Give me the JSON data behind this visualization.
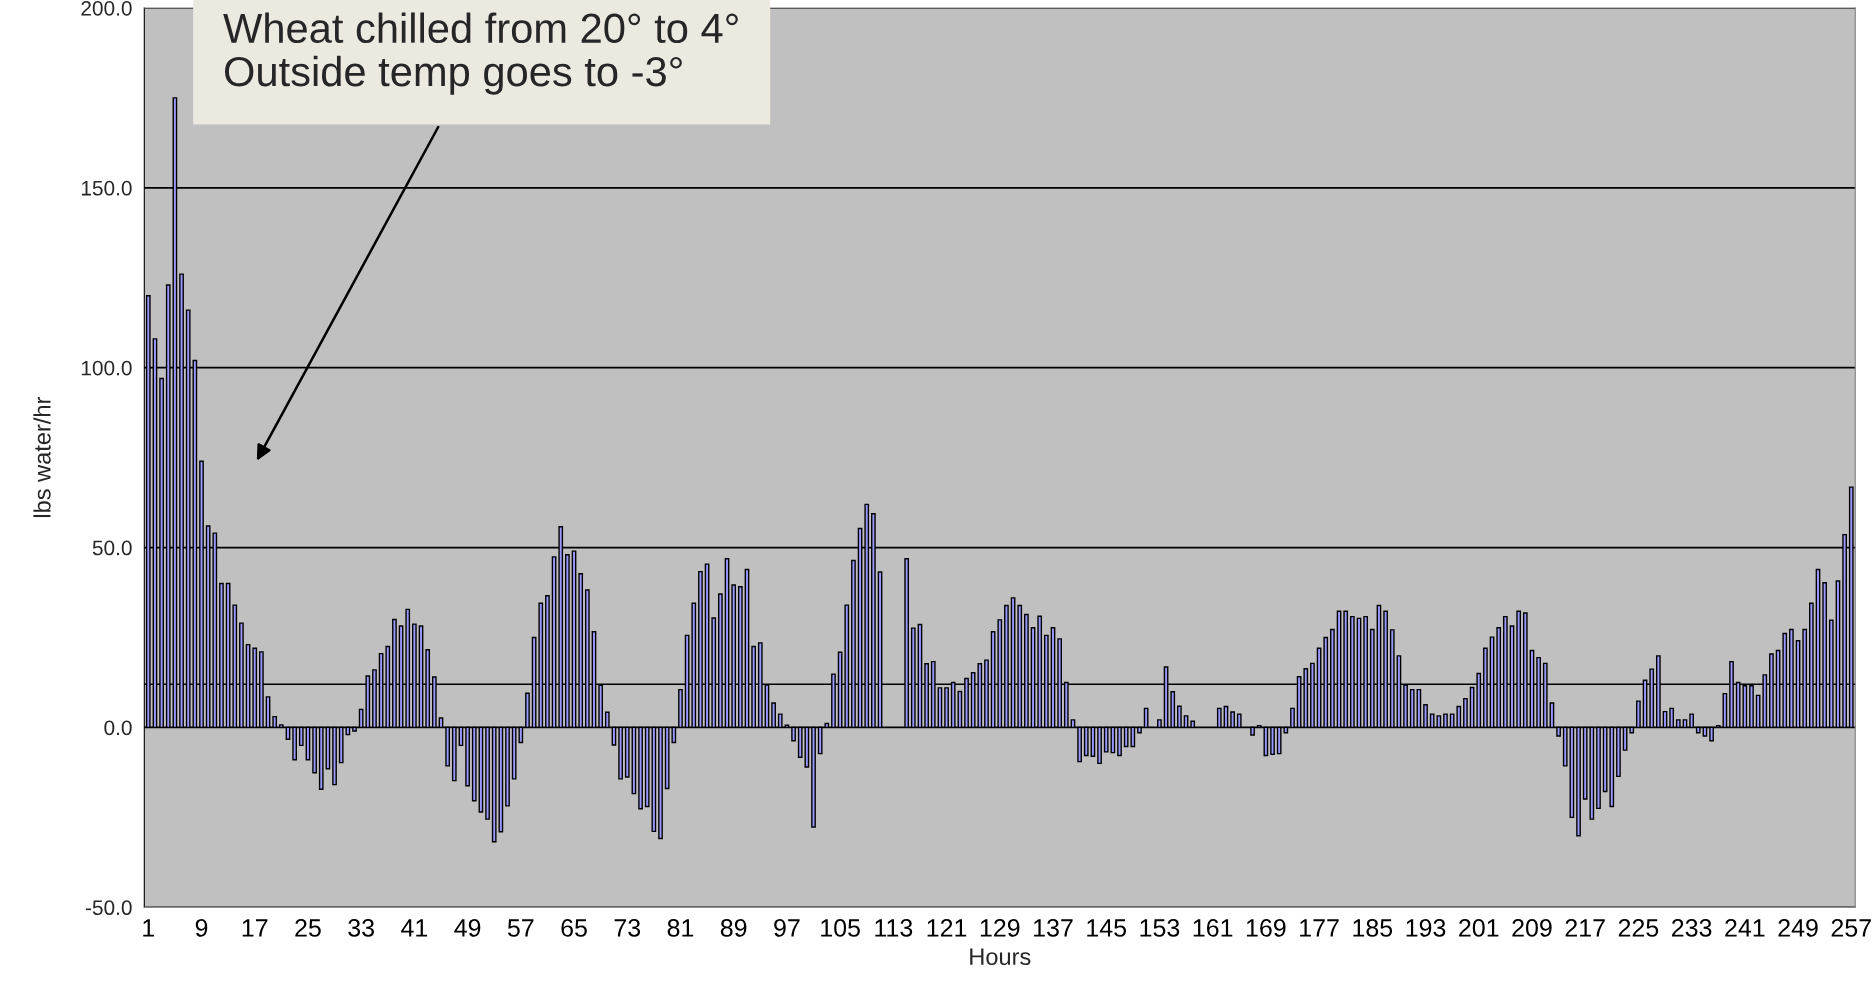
{
  "chart_data": {
    "type": "bar",
    "xlabel": "Hours",
    "ylabel": "lbs water/hr",
    "categories": [
      "1",
      null,
      null,
      null,
      null,
      null,
      null,
      null,
      "9",
      null,
      null,
      null,
      null,
      null,
      null,
      null,
      "17",
      null,
      null,
      null,
      null,
      null,
      null,
      null,
      "25",
      null,
      null,
      null,
      null,
      null,
      null,
      null,
      "33",
      null,
      null,
      null,
      null,
      null,
      null,
      null,
      "41",
      null,
      null,
      null,
      null,
      null,
      null,
      null,
      "49",
      null,
      null,
      null,
      null,
      null,
      null,
      null,
      "57",
      null,
      null,
      null,
      null,
      null,
      null,
      null,
      "65",
      null,
      null,
      null,
      null,
      null,
      null,
      null,
      "73",
      null,
      null,
      null,
      null,
      null,
      null,
      null,
      "81",
      null,
      null,
      null,
      null,
      null,
      null,
      null,
      "89",
      null,
      null,
      null,
      null,
      null,
      null,
      null,
      "97",
      null,
      null,
      null,
      null,
      null,
      null,
      null,
      "105",
      null,
      null,
      null,
      null,
      null,
      null,
      null,
      "113",
      null,
      null,
      null,
      null,
      null,
      null,
      null,
      "121",
      null,
      null,
      null,
      null,
      null,
      null,
      null,
      "129",
      null,
      null,
      null,
      null,
      null,
      null,
      null,
      "137",
      null,
      null,
      null,
      null,
      null,
      null,
      null,
      "145",
      null,
      null,
      null,
      null,
      null,
      null,
      null,
      "153",
      null,
      null,
      null,
      null,
      null,
      null,
      null,
      "161",
      null,
      null,
      null,
      null,
      null,
      null,
      null,
      "169",
      null,
      null,
      null,
      null,
      null,
      null,
      null,
      "177",
      null,
      null,
      null,
      null,
      null,
      null,
      null,
      "185",
      null,
      null,
      null,
      null,
      null,
      null,
      null,
      "193",
      null,
      null,
      null,
      null,
      null,
      null,
      null,
      "201",
      null,
      null,
      null,
      null,
      null,
      null,
      null,
      "209",
      null,
      null,
      null,
      null,
      null,
      null,
      null,
      "217",
      null,
      null,
      null,
      null,
      null,
      null,
      null,
      "225",
      null,
      null,
      null,
      null,
      null,
      null,
      null,
      "233",
      null,
      null,
      null,
      null,
      null,
      null,
      null,
      "241",
      null,
      null,
      null,
      null,
      null,
      null,
      null,
      "249",
      null,
      null,
      null,
      null,
      null,
      null,
      null,
      "257"
    ],
    "values": [
      120,
      108,
      97,
      123,
      175,
      126,
      116,
      102,
      74,
      56,
      54,
      40,
      40,
      34,
      29,
      23,
      22,
      21,
      8.5,
      3,
      0.7,
      -3.3,
      -9,
      -5,
      -9,
      -12.6,
      -17.2,
      -11.5,
      -15.9,
      -9.8,
      -2,
      -1,
      5,
      14.3,
      16,
      20.5,
      22.5,
      30,
      28.2,
      32.8,
      28.7,
      28.2,
      21.6,
      14,
      2.6,
      -10.7,
      -14.8,
      -5,
      -16.2,
      -20.4,
      -23.5,
      -25.5,
      -31.8,
      -29,
      -21.8,
      -14.3,
      -4.2,
      9.5,
      25,
      34.5,
      36.6,
      47.4,
      55.8,
      48,
      49,
      42.7,
      38.2,
      26.6,
      11.7,
      4.2,
      -4.9,
      -14.3,
      -13.8,
      -18.4,
      -22.6,
      -22,
      -28.9,
      -30.9,
      -17,
      -4.2,
      10.5,
      25.6,
      34.5,
      43.3,
      45.4,
      30.4,
      37.1,
      46.9,
      39.6,
      39.1,
      43.9,
      22.5,
      23.5,
      11.8,
      6.8,
      3.7,
      0.6,
      -3.7,
      -8.3,
      -11,
      -27.7,
      -7.3,
      1.1,
      14.8,
      20.9,
      34,
      46.4,
      55.3,
      62,
      59.4,
      43.2,
      null,
      null,
      null,
      46.9,
      27.6,
      28.6,
      17.7,
      18.3,
      11,
      11,
      12.5,
      10,
      13.6,
      15.2,
      17.7,
      18.7,
      26.6,
      29.9,
      33.9,
      36,
      33.9,
      31.4,
      27.7,
      30.9,
      25.6,
      27.7,
      24.6,
      12.5,
      2.1,
      -9.5,
      -7.8,
      -8,
      -10,
      -6.8,
      -7,
      -7.8,
      -5.3,
      -5.3,
      -1.5,
      5.3,
      null,
      2.1,
      16.8,
      9.9,
      5.9,
      3.2,
      1.7,
      null,
      null,
      null,
      5.3,
      5.8,
      4.3,
      3.7,
      null,
      -2.1,
      0.5,
      -7.8,
      -7.5,
      -7.3,
      -1.5,
      5.3,
      14.1,
      16.3,
      17.8,
      22,
      25,
      27.2,
      32.3,
      32.3,
      30.8,
      30.3,
      30.8,
      27.2,
      33.9,
      32.3,
      27.1,
      19.9,
      11.8,
      10.5,
      10.5,
      6.3,
      3.7,
      3.2,
      3.7,
      3.7,
      5.8,
      8,
      11.1,
      15,
      22,
      25.1,
      27.7,
      30.8,
      28.2,
      32.3,
      31.8,
      21.4,
      19.4,
      17.8,
      6.8,
      -2.4,
      -10.7,
      -25,
      -30.1,
      -19.9,
      -25.5,
      -22.5,
      -17.8,
      -22,
      -13.6,
      -6.3,
      -1.5,
      7.3,
      13.1,
      16.2,
      19.9,
      4.4,
      5.3,
      2.1,
      2.1,
      3.7,
      -1.5,
      -2.4,
      -3.7,
      0.5,
      9.4,
      18.3,
      12.5,
      11.6,
      11.6,
      8.9,
      14.6,
      20.4,
      21.4,
      26.1,
      27.2,
      24.1,
      27.2,
      34.5,
      43.9,
      40.2,
      29.8,
      40.7,
      53.6,
      66.8
    ],
    "color": "#9999ff",
    "ylim": [
      -50,
      200
    ],
    "yticks": [
      {
        "value": -50,
        "label": "-50.0"
      },
      {
        "value": 0,
        "label": "0.0"
      },
      {
        "value": 50,
        "label": "50.0"
      },
      {
        "value": 100,
        "label": "100.0"
      },
      {
        "value": 150,
        "label": "150.0"
      },
      {
        "value": 200,
        "label": "200.0"
      }
    ],
    "grid": "y",
    "ref_lines": [
      {
        "axis": "y",
        "value": 12,
        "color": "#000000"
      }
    ],
    "annotations": [
      "Wheat chilled from 20° to 4°\nOutside temp goes to -3°"
    ]
  }
}
